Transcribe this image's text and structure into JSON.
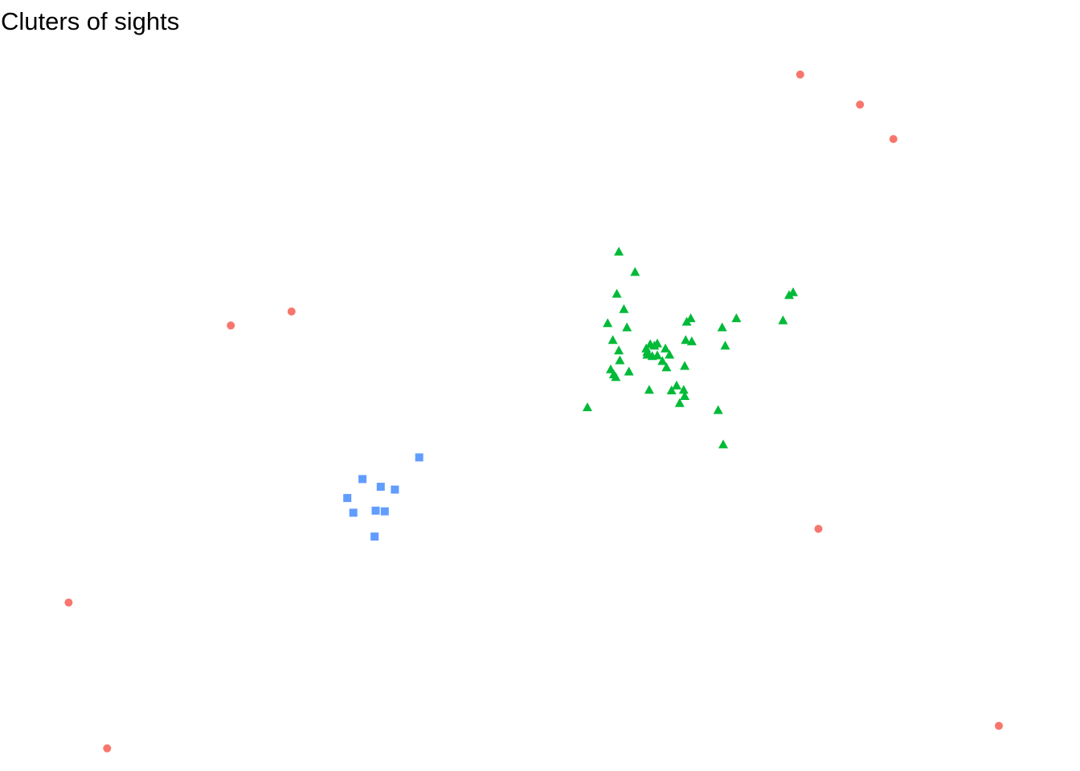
{
  "chart_data": {
    "type": "scatter",
    "title": "Cluters of sights",
    "xlabel": "",
    "ylabel": "",
    "grid": false,
    "axes_visible": false,
    "legend": "none",
    "xlim": [
      0,
      100
    ],
    "ylim": [
      0,
      100
    ],
    "series": [
      {
        "shape": "circle",
        "color": "#F8766D",
        "points": [
          [
            75.8,
            96.7
          ],
          [
            81.7,
            92.4
          ],
          [
            85.0,
            87.5
          ],
          [
            19.6,
            60.9
          ],
          [
            25.6,
            62.9
          ],
          [
            77.6,
            31.9
          ],
          [
            3.6,
            21.4
          ],
          [
            7.4,
            0.6
          ],
          [
            95.4,
            3.8
          ]
        ]
      },
      {
        "shape": "triangle",
        "color": "#00BA38",
        "points": [
          [
            57.9,
            71.4
          ],
          [
            59.5,
            68.5
          ],
          [
            57.7,
            65.4
          ],
          [
            58.4,
            63.2
          ],
          [
            56.8,
            61.2
          ],
          [
            58.7,
            60.6
          ],
          [
            57.3,
            58.8
          ],
          [
            57.9,
            57.3
          ],
          [
            58.0,
            55.9
          ],
          [
            57.1,
            54.6
          ],
          [
            57.4,
            53.9
          ],
          [
            57.6,
            53.5
          ],
          [
            58.9,
            54.3
          ],
          [
            60.6,
            57.6
          ],
          [
            60.7,
            57.1
          ],
          [
            61.0,
            58.2
          ],
          [
            61.4,
            58.0
          ],
          [
            61.7,
            58.3
          ],
          [
            60.7,
            56.7
          ],
          [
            61.2,
            56.5
          ],
          [
            61.7,
            56.6
          ],
          [
            62.2,
            55.8
          ],
          [
            62.5,
            57.6
          ],
          [
            62.9,
            56.7
          ],
          [
            62.6,
            54.9
          ],
          [
            64.4,
            55.1
          ],
          [
            64.6,
            61.4
          ],
          [
            65.0,
            61.9
          ],
          [
            64.5,
            58.8
          ],
          [
            65.1,
            58.6
          ],
          [
            68.1,
            60.6
          ],
          [
            69.5,
            61.9
          ],
          [
            68.4,
            58.0
          ],
          [
            74.1,
            61.6
          ],
          [
            74.7,
            65.2
          ],
          [
            75.1,
            65.6
          ],
          [
            60.9,
            51.7
          ],
          [
            63.1,
            51.6
          ],
          [
            63.6,
            52.3
          ],
          [
            64.3,
            51.7
          ],
          [
            64.4,
            50.8
          ],
          [
            63.9,
            49.8
          ],
          [
            54.8,
            49.2
          ],
          [
            67.7,
            48.8
          ],
          [
            68.2,
            43.9
          ]
        ]
      },
      {
        "shape": "square",
        "color": "#619CFF",
        "points": [
          [
            38.2,
            42.1
          ],
          [
            32.6,
            39.0
          ],
          [
            34.4,
            37.9
          ],
          [
            35.8,
            37.5
          ],
          [
            31.1,
            36.3
          ],
          [
            31.7,
            34.2
          ],
          [
            33.9,
            34.5
          ],
          [
            34.8,
            34.4
          ],
          [
            33.8,
            30.8
          ]
        ]
      }
    ]
  }
}
